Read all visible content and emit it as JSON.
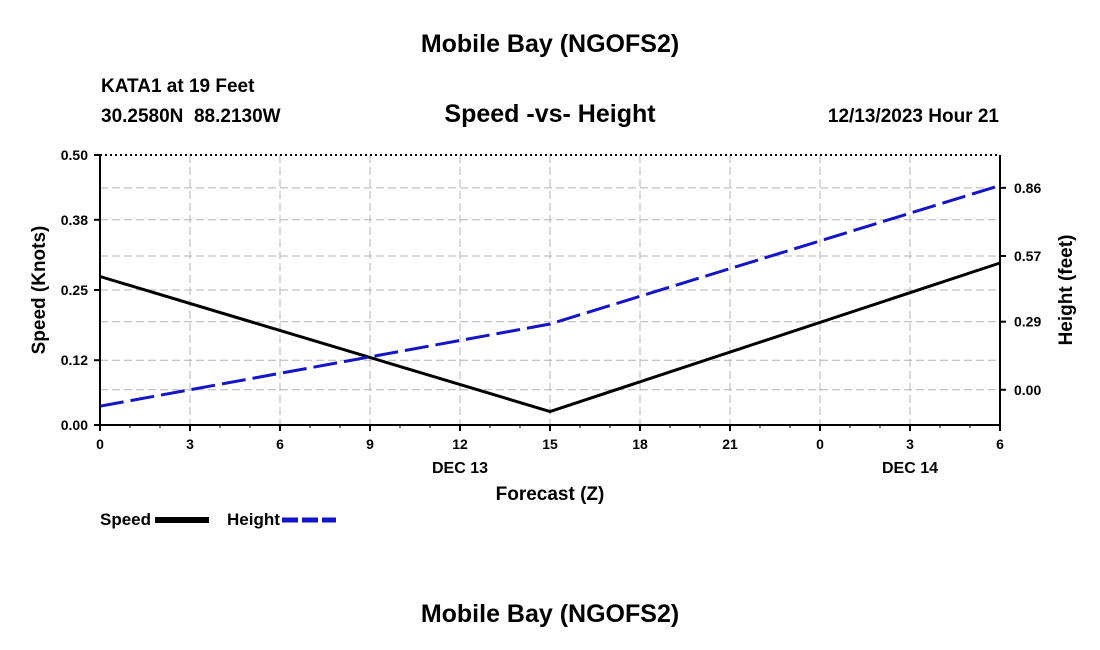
{
  "header": {
    "title": "Mobile Bay (NGOFS2)",
    "station_line": "KATA1 at 19 Feet",
    "coords_line": "30.2580N  88.2130W",
    "subtitle": "Speed -vs- Height",
    "datetime": "12/13/2023 Hour 21"
  },
  "footer": {
    "title": "Mobile Bay (NGOFS2)"
  },
  "chart_data": {
    "type": "line",
    "title": "Speed -vs- Height",
    "xlabel": "Forecast (Z)",
    "ylabel": "Speed (Knots)",
    "y2label": "Height (feet)",
    "x_hours": [
      0,
      3,
      6,
      9,
      12,
      15,
      18,
      21,
      24,
      27,
      30
    ],
    "x_tick_labels": [
      "0",
      "3",
      "6",
      "9",
      "12",
      "15",
      "18",
      "21",
      "0",
      "3",
      "6"
    ],
    "date_labels": [
      {
        "hour": 12,
        "label": "DEC 13"
      },
      {
        "hour": 27,
        "label": "DEC 14"
      }
    ],
    "xlim": [
      0,
      30
    ],
    "ylim": [
      0,
      0.5
    ],
    "y_ticks": [
      0.0,
      0.12,
      0.25,
      0.38,
      0.5
    ],
    "y_tick_labels": [
      "0.00",
      "0.12",
      "0.25",
      "0.38",
      "0.50"
    ],
    "y2lim": [
      -0.15,
      1.0
    ],
    "y2_ticks": [
      0.0,
      0.29,
      0.57,
      0.86
    ],
    "y2_tick_labels": [
      "0.00",
      "0.29",
      "0.57",
      "0.86"
    ],
    "grid": true,
    "series": [
      {
        "name": "Speed",
        "axis": "left",
        "color": "#000000",
        "style": "solid",
        "x": [
          0,
          15,
          30
        ],
        "y": [
          0.275,
          0.025,
          0.3
        ]
      },
      {
        "name": "Height",
        "axis": "right",
        "color": "#1515c8",
        "style": "dashed",
        "x": [
          0,
          15,
          30
        ],
        "y": [
          -0.07,
          0.28,
          0.87
        ]
      }
    ],
    "legend": [
      {
        "label": "Speed",
        "color": "#000000",
        "style": "solid"
      },
      {
        "label": "Height",
        "color": "#1515c8",
        "style": "dashed"
      }
    ],
    "legend_position": "bottom-left"
  }
}
